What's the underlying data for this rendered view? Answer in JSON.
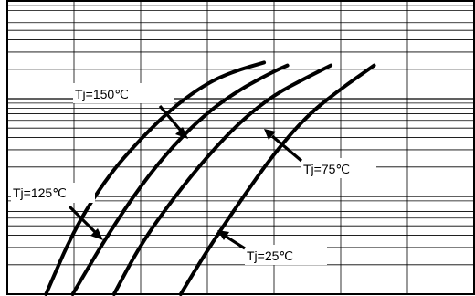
{
  "chart_data": {
    "type": "line",
    "title": "",
    "xlabel": "",
    "ylabel": "",
    "grid": true,
    "x_divisions": 7,
    "y_major_divisions": 3,
    "y_minor_per_decade": 9,
    "y_scale": "log",
    "series": [
      {
        "name": "Tj=150℃",
        "x": [
          0.58,
          1.0,
          1.5,
          2.0,
          2.5,
          3.0,
          3.4,
          3.85
        ],
        "y": [
          0.0,
          0.22,
          0.4,
          0.53,
          0.64,
          0.72,
          0.76,
          0.79
        ]
      },
      {
        "name": "Tj=125℃",
        "x": [
          0.98,
          1.5,
          2.0,
          2.5,
          3.0,
          3.5,
          4.0,
          4.2
        ],
        "y": [
          0.0,
          0.2,
          0.37,
          0.51,
          0.62,
          0.7,
          0.76,
          0.78
        ]
      },
      {
        "name": "Tj=75℃",
        "x": [
          1.6,
          2.0,
          2.5,
          3.0,
          3.5,
          4.0,
          4.5,
          4.85
        ],
        "y": [
          0.0,
          0.17,
          0.33,
          0.47,
          0.59,
          0.68,
          0.74,
          0.78
        ]
      },
      {
        "name": "Tj=25℃",
        "x": [
          2.6,
          3.0,
          3.5,
          4.0,
          4.5,
          5.0,
          5.5
        ],
        "y": [
          0.0,
          0.15,
          0.32,
          0.48,
          0.61,
          0.7,
          0.78
        ]
      }
    ],
    "annotations": [
      {
        "text": "Tj=150℃",
        "series": "Tj=150℃"
      },
      {
        "text": "Tj=125℃",
        "series": "Tj=125℃"
      },
      {
        "text": "Tj=75℃",
        "series": "Tj=75℃"
      },
      {
        "text": "Tj=25℃",
        "series": "Tj=25℃"
      }
    ]
  }
}
